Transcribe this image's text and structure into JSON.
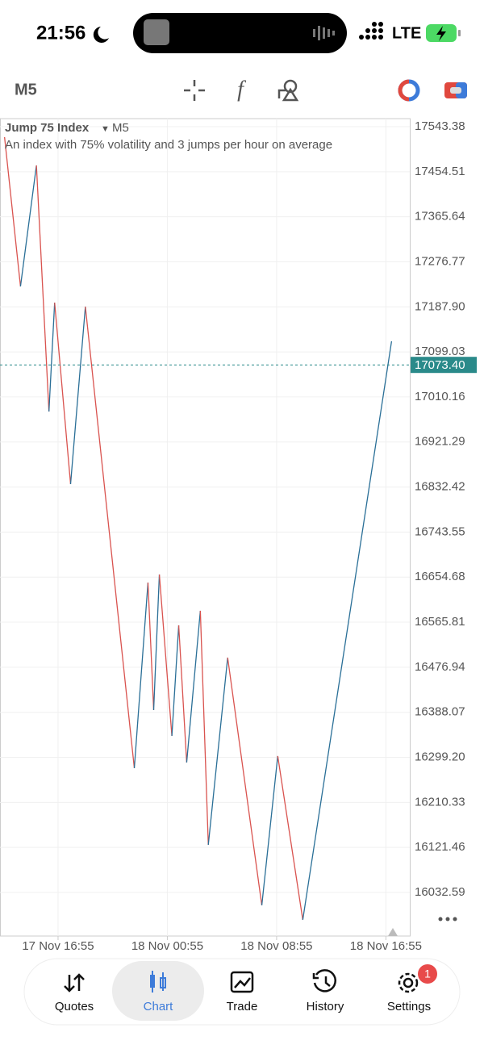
{
  "status_bar": {
    "time": "21:56",
    "network": "LTE"
  },
  "toolbar": {
    "timeframe": "M5"
  },
  "chart_data": {
    "type": "line",
    "title": "Jump 75 Index",
    "timeframe": "M5",
    "subtitle": "An index with 75% volatility and 3 jumps per hour on average",
    "x": [
      "17 Nov 13:00",
      "17 Nov 14:10",
      "17 Nov 15:20",
      "17 Nov 16:15",
      "17 Nov 16:40",
      "17 Nov 17:50",
      "17 Nov 18:55",
      "17 Nov 22:30",
      "17 Nov 23:30",
      "17 Nov 23:55",
      "18 Nov 00:20",
      "18 Nov 01:15",
      "18 Nov 01:45",
      "18 Nov 02:20",
      "18 Nov 03:20",
      "18 Nov 03:55",
      "18 Nov 05:20",
      "18 Nov 07:50",
      "18 Nov 09:00",
      "18 Nov 10:50",
      "18 Nov 17:20"
    ],
    "values": [
      17522.7,
      17228.2,
      17467.0,
      16981.5,
      17196.3,
      16838.2,
      17188.4,
      16277.9,
      16644.0,
      16392.5,
      16659.9,
      16341.5,
      16559.6,
      16289.0,
      16588.3,
      16126.6,
      16495.9,
      16007.2,
      16301.8,
      15978.6,
      17120.0
    ],
    "up_color": "#2a6f97",
    "down_color": "#d9534f",
    "xlim": [
      "17 Nov 12:40",
      "18 Nov 18:40"
    ],
    "xticks": [
      "17 Nov 16:55",
      "18 Nov 00:55",
      "18 Nov 08:55",
      "18 Nov 16:55"
    ],
    "ylim": [
      15946.6,
      17559.3
    ],
    "yticks": [
      17543.38,
      17454.51,
      17365.64,
      17276.77,
      {
        "value": 17187.9,
        "label": "17187.90"
      },
      17099.03,
      17010.16,
      16921.29,
      16832.42,
      16743.55,
      16654.68,
      16565.81,
      16476.94,
      16388.07,
      {
        "value": 16299.2,
        "label": "16299.20"
      },
      16210.33,
      16121.46,
      16032.59
    ],
    "last_price": {
      "value": 17073.4,
      "label": "17073.40"
    },
    "grid": true
  },
  "nav": {
    "items": [
      "Quotes",
      "Chart",
      "Trade",
      "History",
      "Settings"
    ],
    "active": "Chart",
    "settings_badge": "1"
  }
}
